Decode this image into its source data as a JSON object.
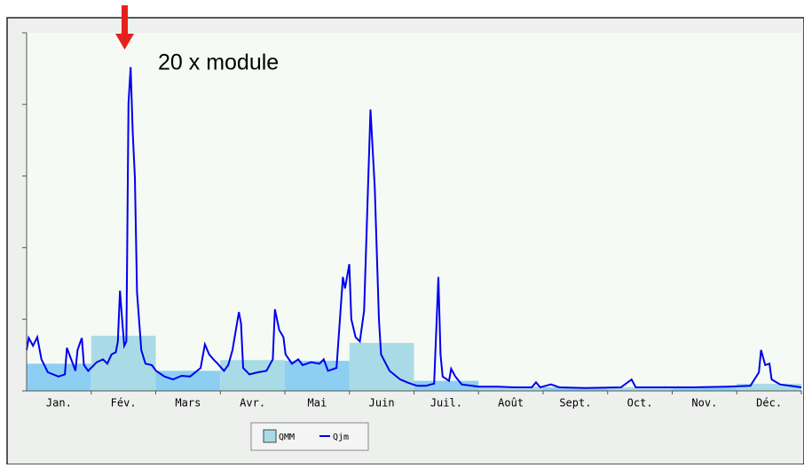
{
  "chart_data": {
    "type": "bar",
    "annotation": "20 x module",
    "categories": [
      "Jan.",
      "Fév.",
      "Mars",
      "Avr.",
      "Mai",
      "Juin",
      "Juil.",
      "Août",
      "Sept.",
      "Oct.",
      "Nov.",
      "Déc."
    ],
    "ylim": [
      0,
      5
    ],
    "yticks": [
      0,
      1,
      2,
      3,
      4,
      5
    ],
    "xlim": [
      0,
      365
    ],
    "series": [
      {
        "name": "QMM",
        "colors": [
          "#8ccff3",
          "#a9dbe6",
          "#8ccff3",
          "#a9dbe6",
          "#8ccff3",
          "#a9dbe6",
          "#8ccff3",
          "#a9dbe6",
          "#8ccff3",
          "#a9dbe6",
          "#8ccff3",
          "#a9dbe6"
        ],
        "values": [
          0.38,
          0.77,
          0.28,
          0.43,
          0.42,
          0.67,
          0.14,
          0.06,
          0.05,
          0.05,
          0.05,
          0.1
        ]
      },
      {
        "name": "Qjm",
        "color": "#0000ee",
        "x": [
          0,
          1,
          3,
          5,
          7,
          10,
          15,
          18,
          19,
          21,
          23,
          24,
          26,
          27,
          29,
          33,
          36,
          38,
          40,
          42,
          43,
          44,
          45,
          46,
          47,
          48,
          49,
          50,
          51,
          52,
          54,
          56,
          59,
          61,
          65,
          69,
          73,
          77,
          82,
          84,
          86,
          88,
          90,
          93,
          95,
          97,
          100,
          101,
          102,
          105,
          109,
          113,
          116,
          117,
          119,
          121,
          122,
          125,
          128,
          130,
          134,
          138,
          140,
          142,
          146,
          149,
          150,
          152,
          153,
          155,
          157,
          159,
          161,
          162,
          164,
          166,
          167,
          171,
          176,
          180,
          184,
          188,
          192,
          194,
          195,
          196,
          199,
          200,
          202,
          205,
          213,
          222,
          230,
          238,
          240,
          242,
          247,
          251,
          263,
          280,
          285,
          287,
          297,
          314,
          330,
          341,
          345,
          346,
          348,
          350,
          351,
          355,
          365
        ],
        "values": [
          0.57,
          0.74,
          0.63,
          0.75,
          0.44,
          0.26,
          0.2,
          0.23,
          0.6,
          0.44,
          0.28,
          0.57,
          0.74,
          0.36,
          0.28,
          0.4,
          0.44,
          0.38,
          0.51,
          0.54,
          0.69,
          1.4,
          1.0,
          0.63,
          0.69,
          4.02,
          4.52,
          3.6,
          2.98,
          1.38,
          0.57,
          0.38,
          0.36,
          0.28,
          0.2,
          0.16,
          0.21,
          0.2,
          0.32,
          0.65,
          0.51,
          0.44,
          0.38,
          0.28,
          0.36,
          0.57,
          1.1,
          0.94,
          0.32,
          0.23,
          0.26,
          0.28,
          0.44,
          1.14,
          0.85,
          0.75,
          0.51,
          0.38,
          0.44,
          0.36,
          0.4,
          0.38,
          0.44,
          0.28,
          0.32,
          1.59,
          1.43,
          1.77,
          1.0,
          0.75,
          0.69,
          1.12,
          3.0,
          3.93,
          2.84,
          1.0,
          0.51,
          0.28,
          0.16,
          0.11,
          0.07,
          0.07,
          0.1,
          1.59,
          0.51,
          0.2,
          0.14,
          0.31,
          0.2,
          0.09,
          0.06,
          0.06,
          0.05,
          0.05,
          0.12,
          0.05,
          0.09,
          0.05,
          0.04,
          0.05,
          0.16,
          0.05,
          0.05,
          0.05,
          0.06,
          0.07,
          0.26,
          0.57,
          0.36,
          0.38,
          0.16,
          0.09,
          0.05
        ]
      }
    ]
  }
}
